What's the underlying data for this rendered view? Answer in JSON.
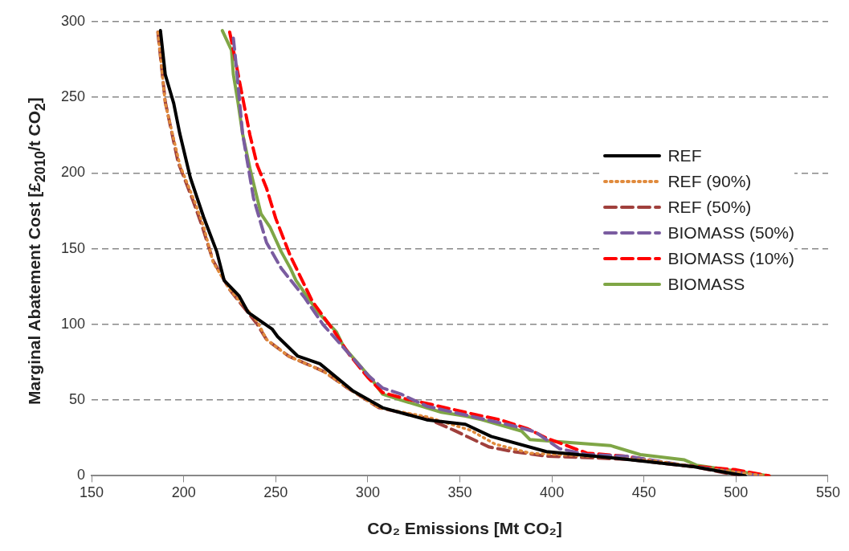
{
  "chart_data": {
    "type": "line",
    "xlabel": "CO₂ Emissions [Mt CO₂]",
    "ylabel": "Marginal Abatement Cost [£$_{2010}$/t CO$_{2}$]",
    "xlim": [
      150,
      550
    ],
    "xticks": [
      150,
      200,
      250,
      300,
      350,
      400,
      450,
      500,
      550
    ],
    "ylim": [
      0,
      300
    ],
    "yticks": [
      0,
      50,
      100,
      150,
      200,
      250,
      300
    ],
    "grid": "y",
    "legend": "center right",
    "marker": "none",
    "series": [
      {
        "name": "REF",
        "color": "#000000",
        "line_style": "solid",
        "x": [
          187.4,
          190,
          194.6,
          197.9,
          203.6,
          210.8,
          218,
          222,
          230,
          235,
          248,
          251,
          262,
          274,
          292,
          308,
          332,
          353,
          367,
          397,
          440,
          477,
          505
        ],
        "values": [
          294,
          265,
          246,
          226,
          197,
          171,
          148,
          129,
          119,
          108,
          97,
          92,
          79,
          74,
          56,
          45,
          37,
          34,
          26,
          16,
          11,
          6,
          0
        ]
      },
      {
        "name": "REF (90%)",
        "color": "#e08a3c",
        "line_style": "dotted",
        "x": [
          186,
          188,
          190,
          198,
          206,
          211,
          216,
          225,
          240,
          245,
          257,
          276,
          289,
          306,
          332,
          356,
          369,
          388,
          419,
          455,
          484,
          516
        ],
        "values": [
          293,
          270,
          246,
          205,
          181,
          164,
          141,
          123,
          102,
          90,
          79,
          69,
          58,
          45,
          39,
          30,
          21,
          15,
          13,
          10,
          5,
          0
        ]
      },
      {
        "name": "REF (50%)",
        "color": "#a0403c",
        "line_style": "dashed",
        "x": [
          186,
          188,
          190,
          197,
          205,
          210,
          216,
          225,
          240,
          245,
          257,
          276,
          289,
          306,
          332,
          347,
          359,
          366,
          379,
          397,
          440,
          477,
          502
        ],
        "values": [
          293,
          270,
          247,
          207,
          182,
          165,
          142,
          123,
          100,
          90,
          79,
          69,
          58,
          45,
          38,
          30,
          23,
          19,
          16,
          13,
          11,
          6,
          0
        ]
      },
      {
        "name": "BIOMASS (50%)",
        "color": "#7a5ca0",
        "line_style": "dashed",
        "x": [
          227,
          228.7,
          232,
          238,
          245,
          253,
          265.5,
          275.6,
          300.5,
          308,
          318,
          332,
          379,
          391,
          404,
          419,
          440,
          472,
          513.5
        ],
        "values": [
          289,
          269,
          226,
          183,
          154,
          137,
          118,
          100,
          66,
          58,
          54,
          46,
          33,
          29,
          18,
          14,
          13,
          7,
          0
        ]
      },
      {
        "name": "BIOMASS (10%)",
        "color": "#ff0000",
        "line_style": "dashed",
        "x": [
          225,
          228,
          232,
          236,
          240,
          245,
          250,
          258,
          270,
          282,
          290,
          300,
          308,
          320,
          335,
          360,
          372,
          387,
          397,
          419,
          440,
          470,
          500,
          518
        ],
        "values": [
          293,
          275,
          250,
          225,
          205,
          190,
          170,
          145,
          115,
          95,
          80,
          65,
          55,
          51,
          47,
          40,
          37,
          31,
          25,
          15,
          13,
          7,
          4,
          0
        ]
      },
      {
        "name": "BIOMASS",
        "color": "#7fa646",
        "line_style": "solid",
        "x": [
          221,
          226,
          227,
          229.6,
          232,
          236,
          240,
          242,
          247,
          253,
          258,
          261,
          273,
          283,
          287,
          302,
          308,
          318,
          340,
          353,
          362,
          383.6,
          388,
          431.7,
          448,
          472,
          478.5,
          518
        ],
        "values": [
          294,
          281,
          265,
          246,
          226,
          203,
          183,
          173,
          164,
          148,
          137,
          129,
          108,
          95,
          85,
          64,
          54,
          50,
          42,
          39.5,
          37,
          29.5,
          24,
          20,
          14,
          10.5,
          7,
          0
        ]
      }
    ]
  }
}
